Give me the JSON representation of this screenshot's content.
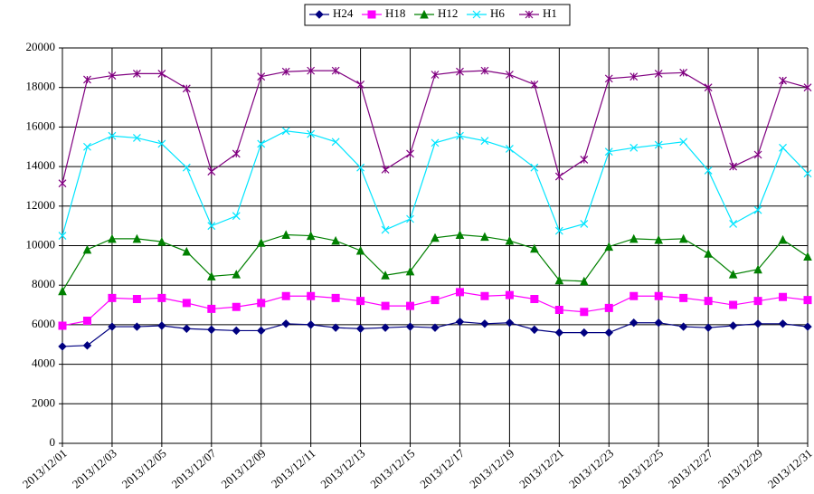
{
  "chart_data": {
    "type": "line",
    "categories": [
      "2013/12/01",
      null,
      "2013/12/03",
      null,
      "2013/12/05",
      null,
      "2013/12/07",
      null,
      "2013/12/09",
      null,
      "2013/12/11",
      null,
      "2013/12/13",
      null,
      "2013/12/15",
      null,
      "2013/12/17",
      null,
      "2013/12/19",
      null,
      "2013/12/21",
      null,
      "2013/12/23",
      null,
      "2013/12/25",
      null,
      "2013/12/27",
      null,
      "2013/12/29",
      null,
      "2013/12/31"
    ],
    "series": [
      {
        "name": "H24",
        "color": "#000080",
        "marker": "diamond",
        "values": [
          4900,
          4950,
          5900,
          5900,
          5950,
          5800,
          5750,
          5700,
          5700,
          6050,
          6000,
          5850,
          5800,
          5850,
          5900,
          5850,
          6150,
          6050,
          6100,
          5750,
          5600,
          5600,
          5600,
          6100,
          6100,
          5900,
          5850,
          5950,
          6050,
          6050,
          5900
        ]
      },
      {
        "name": "H18",
        "color": "#ff00ff",
        "marker": "square",
        "values": [
          5950,
          6200,
          7350,
          7300,
          7350,
          7100,
          6800,
          6900,
          7100,
          7450,
          7450,
          7350,
          7200,
          6950,
          6950,
          7250,
          7650,
          7450,
          7500,
          7300,
          6750,
          6650,
          6850,
          7450,
          7450,
          7350,
          7200,
          7000,
          7200,
          7400,
          7250
        ]
      },
      {
        "name": "H12",
        "color": "#008000",
        "marker": "triangle",
        "values": [
          7700,
          9800,
          10350,
          10350,
          10200,
          9700,
          8450,
          8550,
          10150,
          10550,
          10500,
          10250,
          9750,
          8500,
          8700,
          10400,
          10550,
          10450,
          10250,
          9850,
          8250,
          8200,
          9950,
          10350,
          10300,
          10350,
          9600,
          8550,
          8800,
          10300,
          9450
        ]
      },
      {
        "name": "H6",
        "color": "#00e5ff",
        "marker": "x",
        "values": [
          10500,
          15000,
          15550,
          15450,
          15150,
          13950,
          11000,
          11500,
          15150,
          15800,
          15650,
          15250,
          13950,
          10800,
          11350,
          15200,
          15550,
          15300,
          14900,
          13950,
          10750,
          11100,
          14750,
          14950,
          15100,
          15250,
          13800,
          11100,
          11800,
          14950,
          13650
        ]
      },
      {
        "name": "H1",
        "color": "#800080",
        "marker": "star",
        "values": [
          13150,
          18400,
          18600,
          18700,
          18700,
          17950,
          13750,
          14650,
          18550,
          18800,
          18850,
          18850,
          18150,
          13850,
          14650,
          18650,
          18800,
          18850,
          18650,
          18150,
          13500,
          14350,
          18450,
          18550,
          18700,
          18750,
          18000,
          14000,
          14600,
          18350,
          18000
        ]
      }
    ],
    "ylim": [
      0,
      20000
    ],
    "yticks": [
      0,
      2000,
      4000,
      6000,
      8000,
      10000,
      12000,
      14000,
      16000,
      18000,
      20000
    ],
    "grid": true,
    "legend": "top"
  }
}
